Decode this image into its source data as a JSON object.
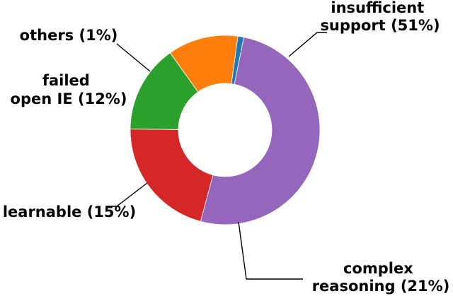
{
  "chart_data": {
    "type": "pie",
    "variant": "donut",
    "title": "",
    "slices": [
      {
        "key": "insufficient",
        "label_lines": [
          "insufficient",
          "support (51%)"
        ],
        "value": 51,
        "color": "#9467bd"
      },
      {
        "key": "complex",
        "label_lines": [
          "complex",
          "reasoning (21%)"
        ],
        "value": 21,
        "color": "#d62728"
      },
      {
        "key": "learnable",
        "label_lines": [
          "learnable (15%)"
        ],
        "value": 15,
        "color": "#2ca02c"
      },
      {
        "key": "failed",
        "label_lines": [
          "failed",
          "open IE (12%)"
        ],
        "value": 12,
        "color": "#ff7f0e"
      },
      {
        "key": "others",
        "label_lines": [
          "others (1%)"
        ],
        "value": 1,
        "color": "#1f77b4"
      }
    ]
  }
}
